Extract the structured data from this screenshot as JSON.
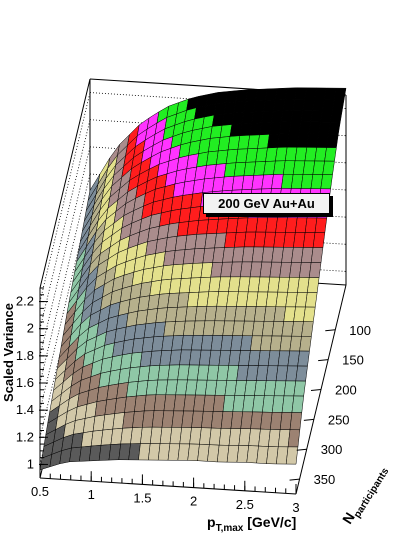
{
  "chart_data": {
    "type": "surface",
    "title": "200 GeV Au+Au",
    "xlabel_main": "p",
    "xlabel_sub": "T,max",
    "xlabel_unit": " [GeV/c]",
    "ylabel_main": "N",
    "ylabel_sub": "participants",
    "zlabel": "Scaled Variance",
    "xlim": [
      0.5,
      3
    ],
    "ylim": [
      25,
      375
    ],
    "zlim": [
      0.9,
      2.3
    ],
    "x_ticks": [
      "0.5",
      "1",
      "1.5",
      "2",
      "2.5",
      "3"
    ],
    "y_ticks": [
      "100",
      "150",
      "200",
      "250",
      "300",
      "350"
    ],
    "z_ticks": [
      "1",
      "1.2",
      "1.4",
      "1.6",
      "1.8",
      "2",
      "2.2"
    ],
    "grid": true,
    "contour_colors": [
      "#5a5a5a",
      "#d2c8a8",
      "#9c8272",
      "#8fc7a6",
      "#7d8d9a",
      "#b6b08c",
      "#e3e08c",
      "#aa8c8c",
      "#ff1d1d",
      "#ff33ff",
      "#22ee22",
      "#000000"
    ],
    "surface_rows": [
      {
        "npart": 375,
        "z": [
          0.96,
          1.03,
          1.05,
          1.07,
          1.08,
          1.09,
          1.1,
          1.1,
          1.11,
          1.11,
          1.12
        ]
      },
      {
        "npart": 325,
        "z": [
          1.06,
          1.18,
          1.24,
          1.28,
          1.31,
          1.32,
          1.33,
          1.34,
          1.35,
          1.36,
          1.37
        ]
      },
      {
        "npart": 275,
        "z": [
          1.14,
          1.32,
          1.41,
          1.46,
          1.49,
          1.51,
          1.52,
          1.53,
          1.54,
          1.55,
          1.56
        ]
      },
      {
        "npart": 225,
        "z": [
          1.22,
          1.45,
          1.56,
          1.62,
          1.66,
          1.68,
          1.7,
          1.71,
          1.72,
          1.73,
          1.74
        ]
      },
      {
        "npart": 175,
        "z": [
          1.3,
          1.57,
          1.7,
          1.78,
          1.83,
          1.86,
          1.88,
          1.9,
          1.91,
          1.92,
          1.93
        ]
      },
      {
        "npart": 125,
        "z": [
          1.36,
          1.66,
          1.82,
          1.92,
          1.98,
          2.02,
          2.05,
          2.07,
          2.09,
          2.1,
          2.11
        ]
      },
      {
        "npart": 75,
        "z": [
          1.42,
          1.74,
          1.92,
          2.04,
          2.12,
          2.17,
          2.2,
          2.22,
          2.24,
          2.25,
          2.26
        ]
      },
      {
        "npart": 25,
        "z": [
          1.48,
          1.8,
          2.0,
          2.13,
          2.21,
          2.26,
          2.29,
          2.31,
          2.33,
          2.34,
          2.35
        ]
      }
    ],
    "surface_x": [
      0.5,
      0.75,
      1.0,
      1.25,
      1.5,
      1.75,
      2.0,
      2.25,
      2.5,
      2.75,
      3.0
    ]
  }
}
